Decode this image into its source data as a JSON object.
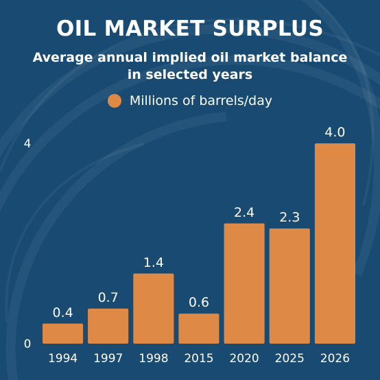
{
  "colors": {
    "background": "#184a72",
    "bar": "#de8a46",
    "text": "#ffffff"
  },
  "header": {
    "title": "OIL MARKET SURPLUS",
    "subtitle": "Average annual implied oil market balance in selected years"
  },
  "chart_data": {
    "type": "bar",
    "categories": [
      "1994",
      "1997",
      "1998",
      "2015",
      "2020",
      "2025",
      "2026"
    ],
    "series": [
      {
        "name": "Millions of barrels/day",
        "values": [
          0.4,
          0.7,
          1.4,
          0.6,
          2.4,
          2.3,
          4.0
        ]
      }
    ],
    "value_labels": [
      "0.4",
      "0.7",
      "1.4",
      "0.6",
      "2.4",
      "2.3",
      "4.0"
    ],
    "title": "OIL MARKET SURPLUS",
    "subtitle": "Average annual implied oil market balance in selected years",
    "xlabel": "",
    "ylabel": "",
    "ylim": [
      0,
      4
    ],
    "y_ticks": [
      "0",
      "4"
    ],
    "grid": false,
    "legend": "top-center"
  }
}
